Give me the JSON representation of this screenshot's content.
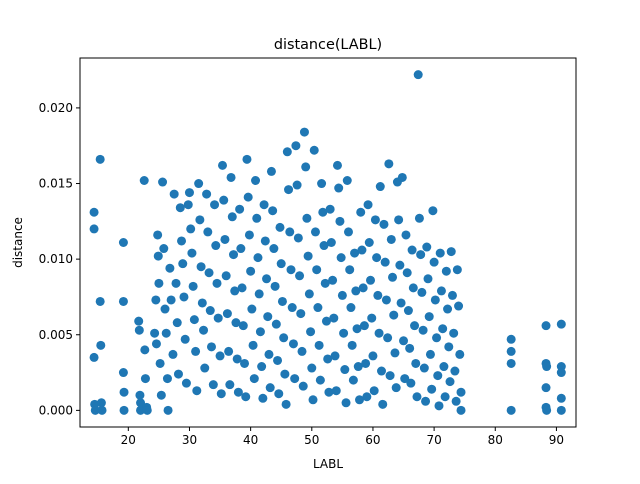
{
  "chart_data": {
    "type": "scatter",
    "title": "distance(LABL)",
    "xlabel": "LABL",
    "ylabel": "distance",
    "xlim": [
      12.1,
      93.2
    ],
    "ylim": [
      -0.0011,
      0.0233
    ],
    "xticks": [
      20,
      30,
      40,
      50,
      60,
      70,
      80,
      90
    ],
    "yticks": [
      0.0,
      0.005,
      0.01,
      0.015,
      0.02
    ],
    "ytick_labels": [
      "0.000",
      "0.005",
      "0.010",
      "0.015",
      "0.020"
    ],
    "grid": false,
    "marker_color": "#1f77b4",
    "points": [
      [
        14.4,
        0.0131
      ],
      [
        14.4,
        0.012
      ],
      [
        14.4,
        0.0035
      ],
      [
        14.5,
        0.0004
      ],
      [
        14.6,
        0.0
      ],
      [
        15.4,
        0.0166
      ],
      [
        15.4,
        0.0072
      ],
      [
        15.5,
        0.0043
      ],
      [
        15.6,
        0.0005
      ],
      [
        15.7,
        0.0
      ],
      [
        19.2,
        0.0111
      ],
      [
        19.2,
        0.0072
      ],
      [
        19.2,
        0.0025
      ],
      [
        19.3,
        0.0012
      ],
      [
        19.3,
        0.0
      ],
      [
        21.7,
        0.0059
      ],
      [
        21.8,
        0.0053
      ],
      [
        21.9,
        0.001
      ],
      [
        22.0,
        0.0005
      ],
      [
        22.0,
        0.0
      ],
      [
        22.6,
        0.0152
      ],
      [
        22.7,
        0.004
      ],
      [
        22.8,
        0.0021
      ],
      [
        23.0,
        0.0002
      ],
      [
        23.1,
        0.0
      ],
      [
        24.3,
        0.0051
      ],
      [
        24.5,
        0.0073
      ],
      [
        24.6,
        0.0044
      ],
      [
        24.8,
        0.0116
      ],
      [
        24.9,
        0.0102
      ],
      [
        25.0,
        0.0084
      ],
      [
        25.2,
        0.0031
      ],
      [
        25.4,
        0.001
      ],
      [
        25.6,
        0.0151
      ],
      [
        25.8,
        0.0107
      ],
      [
        26.0,
        0.0067
      ],
      [
        26.2,
        0.0051
      ],
      [
        26.4,
        0.0021
      ],
      [
        26.5,
        0.0
      ],
      [
        26.8,
        0.0094
      ],
      [
        27.0,
        0.0073
      ],
      [
        27.3,
        0.0037
      ],
      [
        27.5,
        0.0143
      ],
      [
        27.8,
        0.0084
      ],
      [
        28.0,
        0.0058
      ],
      [
        28.2,
        0.0024
      ],
      [
        28.5,
        0.0134
      ],
      [
        28.7,
        0.0112
      ],
      [
        28.9,
        0.0097
      ],
      [
        29.1,
        0.0075
      ],
      [
        29.3,
        0.0047
      ],
      [
        29.5,
        0.0018
      ],
      [
        29.8,
        0.0136
      ],
      [
        30.0,
        0.0144
      ],
      [
        30.2,
        0.012
      ],
      [
        30.4,
        0.0104
      ],
      [
        30.6,
        0.0082
      ],
      [
        30.8,
        0.006
      ],
      [
        31.0,
        0.0039
      ],
      [
        31.2,
        0.0013
      ],
      [
        31.5,
        0.015
      ],
      [
        31.7,
        0.0126
      ],
      [
        31.9,
        0.0095
      ],
      [
        32.1,
        0.0071
      ],
      [
        32.3,
        0.0053
      ],
      [
        32.5,
        0.0028
      ],
      [
        32.8,
        0.0143
      ],
      [
        33.0,
        0.0118
      ],
      [
        33.2,
        0.0091
      ],
      [
        33.4,
        0.0066
      ],
      [
        33.6,
        0.0042
      ],
      [
        33.9,
        0.0017
      ],
      [
        34.1,
        0.0136
      ],
      [
        34.3,
        0.0109
      ],
      [
        34.5,
        0.0084
      ],
      [
        34.7,
        0.0061
      ],
      [
        35.0,
        0.0036
      ],
      [
        35.2,
        0.0011
      ],
      [
        35.4,
        0.0162
      ],
      [
        35.6,
        0.0139
      ],
      [
        35.8,
        0.0113
      ],
      [
        36.0,
        0.0089
      ],
      [
        36.2,
        0.0064
      ],
      [
        36.4,
        0.0039
      ],
      [
        36.6,
        0.0017
      ],
      [
        36.8,
        0.0154
      ],
      [
        37.0,
        0.0128
      ],
      [
        37.2,
        0.0103
      ],
      [
        37.4,
        0.0079
      ],
      [
        37.6,
        0.0058
      ],
      [
        37.8,
        0.0034
      ],
      [
        38.0,
        0.0012
      ],
      [
        38.2,
        0.0133
      ],
      [
        38.4,
        0.0107
      ],
      [
        38.6,
        0.0081
      ],
      [
        38.8,
        0.0056
      ],
      [
        39.0,
        0.0031
      ],
      [
        39.2,
        0.0009
      ],
      [
        39.4,
        0.0166
      ],
      [
        39.6,
        0.0141
      ],
      [
        39.8,
        0.0116
      ],
      [
        40.0,
        0.0092
      ],
      [
        40.2,
        0.0067
      ],
      [
        40.4,
        0.0043
      ],
      [
        40.6,
        0.0021
      ],
      [
        40.8,
        0.0152
      ],
      [
        41.0,
        0.0127
      ],
      [
        41.2,
        0.0101
      ],
      [
        41.4,
        0.0077
      ],
      [
        41.6,
        0.0052
      ],
      [
        41.8,
        0.0029
      ],
      [
        42.0,
        0.0008
      ],
      [
        42.2,
        0.0136
      ],
      [
        42.4,
        0.0112
      ],
      [
        42.6,
        0.0087
      ],
      [
        42.8,
        0.0062
      ],
      [
        43.0,
        0.0037
      ],
      [
        43.2,
        0.0015
      ],
      [
        43.4,
        0.0158
      ],
      [
        43.6,
        0.0132
      ],
      [
        43.8,
        0.0107
      ],
      [
        44.0,
        0.0082
      ],
      [
        44.2,
        0.0057
      ],
      [
        44.4,
        0.0033
      ],
      [
        44.6,
        0.0011
      ],
      [
        44.8,
        0.0121
      ],
      [
        45.0,
        0.0097
      ],
      [
        45.2,
        0.0072
      ],
      [
        45.4,
        0.0048
      ],
      [
        45.6,
        0.0024
      ],
      [
        45.8,
        0.0004
      ],
      [
        46.0,
        0.0171
      ],
      [
        46.2,
        0.0146
      ],
      [
        46.4,
        0.0118
      ],
      [
        46.6,
        0.0093
      ],
      [
        46.8,
        0.0068
      ],
      [
        47.0,
        0.0044
      ],
      [
        47.2,
        0.0021
      ],
      [
        47.4,
        0.0175
      ],
      [
        47.6,
        0.0149
      ],
      [
        47.8,
        0.0114
      ],
      [
        48.0,
        0.0089
      ],
      [
        48.2,
        0.0064
      ],
      [
        48.4,
        0.0039
      ],
      [
        48.6,
        0.0016
      ],
      [
        48.8,
        0.0184
      ],
      [
        49.0,
        0.0161
      ],
      [
        49.2,
        0.0127
      ],
      [
        49.4,
        0.0102
      ],
      [
        49.6,
        0.0077
      ],
      [
        49.8,
        0.0052
      ],
      [
        50.0,
        0.0028
      ],
      [
        50.2,
        0.0007
      ],
      [
        50.4,
        0.0172
      ],
      [
        50.6,
        0.0118
      ],
      [
        50.8,
        0.0093
      ],
      [
        51.0,
        0.0068
      ],
      [
        51.2,
        0.0043
      ],
      [
        51.4,
        0.002
      ],
      [
        51.6,
        0.015
      ],
      [
        51.8,
        0.0131
      ],
      [
        52.0,
        0.0109
      ],
      [
        52.2,
        0.0084
      ],
      [
        52.4,
        0.0059
      ],
      [
        52.6,
        0.0034
      ],
      [
        52.8,
        0.0012
      ],
      [
        53.0,
        0.0133
      ],
      [
        53.2,
        0.0111
      ],
      [
        53.4,
        0.0086
      ],
      [
        53.6,
        0.0061
      ],
      [
        53.8,
        0.0036
      ],
      [
        54.0,
        0.0013
      ],
      [
        54.2,
        0.0162
      ],
      [
        54.4,
        0.0147
      ],
      [
        54.6,
        0.0125
      ],
      [
        54.8,
        0.0101
      ],
      [
        55.0,
        0.0076
      ],
      [
        55.2,
        0.0051
      ],
      [
        55.4,
        0.0027
      ],
      [
        55.6,
        0.0005
      ],
      [
        55.8,
        0.0152
      ],
      [
        56.0,
        0.0118
      ],
      [
        56.2,
        0.0093
      ],
      [
        56.4,
        0.0068
      ],
      [
        56.6,
        0.0043
      ],
      [
        56.8,
        0.002
      ],
      [
        57.0,
        0.0104
      ],
      [
        57.2,
        0.0079
      ],
      [
        57.4,
        0.0054
      ],
      [
        57.6,
        0.0029
      ],
      [
        57.8,
        0.0007
      ],
      [
        58.0,
        0.0131
      ],
      [
        58.2,
        0.0106
      ],
      [
        58.4,
        0.0081
      ],
      [
        58.6,
        0.0056
      ],
      [
        58.8,
        0.0031
      ],
      [
        59.0,
        0.0009
      ],
      [
        59.2,
        0.0136
      ],
      [
        59.4,
        0.0111
      ],
      [
        59.6,
        0.0086
      ],
      [
        59.8,
        0.0061
      ],
      [
        60.0,
        0.0036
      ],
      [
        60.2,
        0.0013
      ],
      [
        60.4,
        0.0126
      ],
      [
        60.6,
        0.0101
      ],
      [
        60.8,
        0.0076
      ],
      [
        61.0,
        0.0051
      ],
      [
        61.2,
        0.0148
      ],
      [
        61.4,
        0.0026
      ],
      [
        61.6,
        0.0004
      ],
      [
        61.8,
        0.0123
      ],
      [
        62.0,
        0.0098
      ],
      [
        62.2,
        0.0073
      ],
      [
        62.4,
        0.0048
      ],
      [
        62.6,
        0.0163
      ],
      [
        62.8,
        0.0023
      ],
      [
        63.0,
        0.0113
      ],
      [
        63.2,
        0.0088
      ],
      [
        63.4,
        0.0063
      ],
      [
        63.6,
        0.0038
      ],
      [
        63.8,
        0.0015
      ],
      [
        64.0,
        0.0151
      ],
      [
        64.2,
        0.0126
      ],
      [
        64.4,
        0.0096
      ],
      [
        64.6,
        0.0071
      ],
      [
        64.8,
        0.0154
      ],
      [
        65.0,
        0.0046
      ],
      [
        65.2,
        0.0021
      ],
      [
        65.4,
        0.0116
      ],
      [
        65.6,
        0.0091
      ],
      [
        65.8,
        0.0066
      ],
      [
        66.0,
        0.0041
      ],
      [
        66.2,
        0.0018
      ],
      [
        66.4,
        0.0106
      ],
      [
        66.6,
        0.0081
      ],
      [
        66.8,
        0.0056
      ],
      [
        67.0,
        0.0031
      ],
      [
        67.2,
        0.0009
      ],
      [
        67.4,
        0.0222
      ],
      [
        67.6,
        0.0127
      ],
      [
        67.8,
        0.0103
      ],
      [
        68.0,
        0.0078
      ],
      [
        68.2,
        0.0053
      ],
      [
        68.4,
        0.0028
      ],
      [
        68.6,
        0.0006
      ],
      [
        68.8,
        0.0108
      ],
      [
        69.0,
        0.0087
      ],
      [
        69.2,
        0.0062
      ],
      [
        69.4,
        0.0037
      ],
      [
        69.6,
        0.0014
      ],
      [
        69.8,
        0.0132
      ],
      [
        70.0,
        0.0098
      ],
      [
        70.2,
        0.0073
      ],
      [
        70.4,
        0.0048
      ],
      [
        70.6,
        0.0023
      ],
      [
        70.8,
        0.0003
      ],
      [
        71.0,
        0.0104
      ],
      [
        71.2,
        0.0079
      ],
      [
        71.4,
        0.0054
      ],
      [
        71.6,
        0.0029
      ],
      [
        71.8,
        0.0009
      ],
      [
        72.0,
        0.0092
      ],
      [
        72.2,
        0.0067
      ],
      [
        72.4,
        0.0042
      ],
      [
        72.6,
        0.0019
      ],
      [
        72.8,
        0.0105
      ],
      [
        73.0,
        0.0076
      ],
      [
        73.2,
        0.0051
      ],
      [
        73.4,
        0.0026
      ],
      [
        73.6,
        0.0006
      ],
      [
        73.8,
        0.0093
      ],
      [
        74.0,
        0.0069
      ],
      [
        74.2,
        0.0037
      ],
      [
        74.4,
        0.0012
      ],
      [
        74.4,
        0.0
      ],
      [
        82.6,
        0.0047
      ],
      [
        82.6,
        0.0039
      ],
      [
        82.6,
        0.0031
      ],
      [
        82.6,
        0.0
      ],
      [
        88.3,
        0.0056
      ],
      [
        88.3,
        0.0031
      ],
      [
        88.4,
        0.0029
      ],
      [
        88.3,
        0.0015
      ],
      [
        88.3,
        0.0002
      ],
      [
        88.4,
        0.0
      ],
      [
        90.8,
        0.0057
      ],
      [
        90.8,
        0.0029
      ],
      [
        90.8,
        0.0025
      ],
      [
        90.8,
        0.0008
      ],
      [
        90.8,
        0.0
      ]
    ]
  }
}
